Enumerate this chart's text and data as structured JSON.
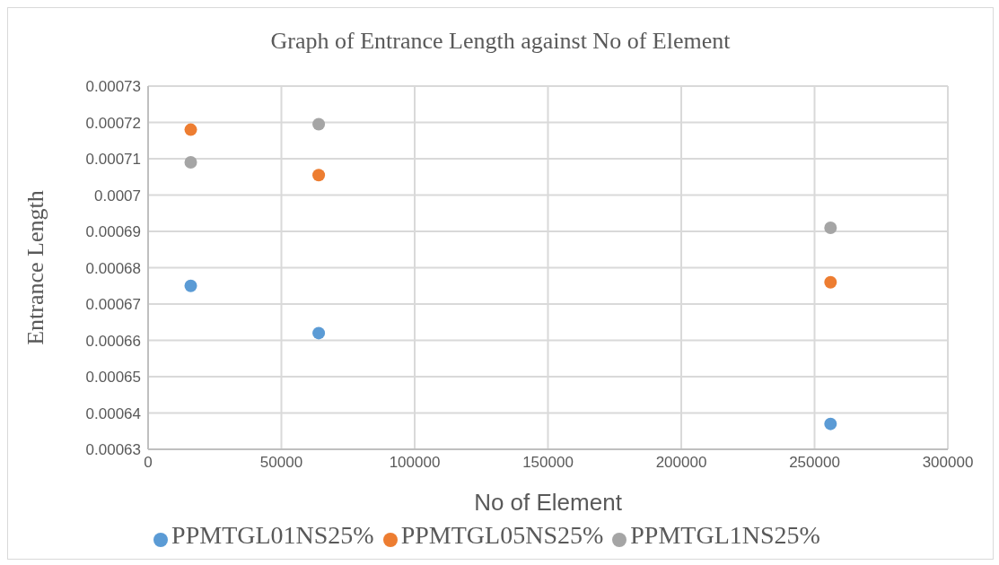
{
  "chart_data": {
    "type": "scatter",
    "title": "Graph of Entrance Length against No of Element",
    "xlabel": "No of Element",
    "ylabel": "Entrance Length",
    "x": [
      16000,
      64000,
      256000
    ],
    "series": [
      {
        "name": "PPMTGL01NS25%",
        "color": "#5b9bd5",
        "values": [
          0.000675,
          0.000662,
          0.000637
        ]
      },
      {
        "name": "PPMTGL05NS25%",
        "color": "#ed7d31",
        "values": [
          0.000718,
          0.0007055,
          0.000676
        ]
      },
      {
        "name": "PPMTGL1NS25%",
        "color": "#a5a5a5",
        "values": [
          0.000709,
          0.0007195,
          0.000691
        ]
      }
    ],
    "xlim": [
      0,
      300000
    ],
    "xticks": [
      0,
      50000,
      100000,
      150000,
      200000,
      250000,
      300000
    ],
    "ylim": [
      0.00063,
      0.00073
    ],
    "yticks": [
      0.00063,
      0.00064,
      0.00065,
      0.00066,
      0.00067,
      0.00068,
      0.00069,
      0.0007,
      0.00071,
      0.00072,
      0.00073
    ],
    "grid": true,
    "legend": "bottom",
    "marker": "circle"
  }
}
